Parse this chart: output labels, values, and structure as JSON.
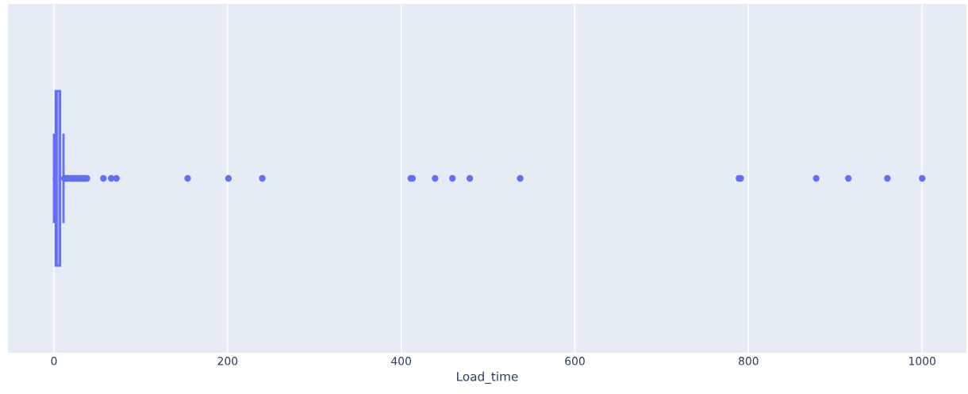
{
  "chart_data": {
    "type": "box",
    "orientation": "horizontal",
    "xlabel": "Load_time",
    "categories": [
      null
    ],
    "boxes": [
      {
        "low": 0,
        "q1": 2,
        "median": 3,
        "q3": 7,
        "high": 11,
        "outliers": [
          12,
          14,
          16,
          18,
          20,
          22,
          24,
          26,
          28,
          30,
          32,
          34,
          36,
          38,
          57,
          66,
          72,
          154,
          201,
          240,
          411,
          413,
          439,
          459,
          479,
          537,
          789,
          791,
          878,
          915,
          960,
          1000
        ]
      }
    ],
    "color": "#636efa",
    "xlim": [
      -53,
      1051
    ],
    "xticks": [
      0,
      200,
      400,
      600,
      800,
      1000
    ],
    "grid": "x",
    "marker": "circle"
  }
}
